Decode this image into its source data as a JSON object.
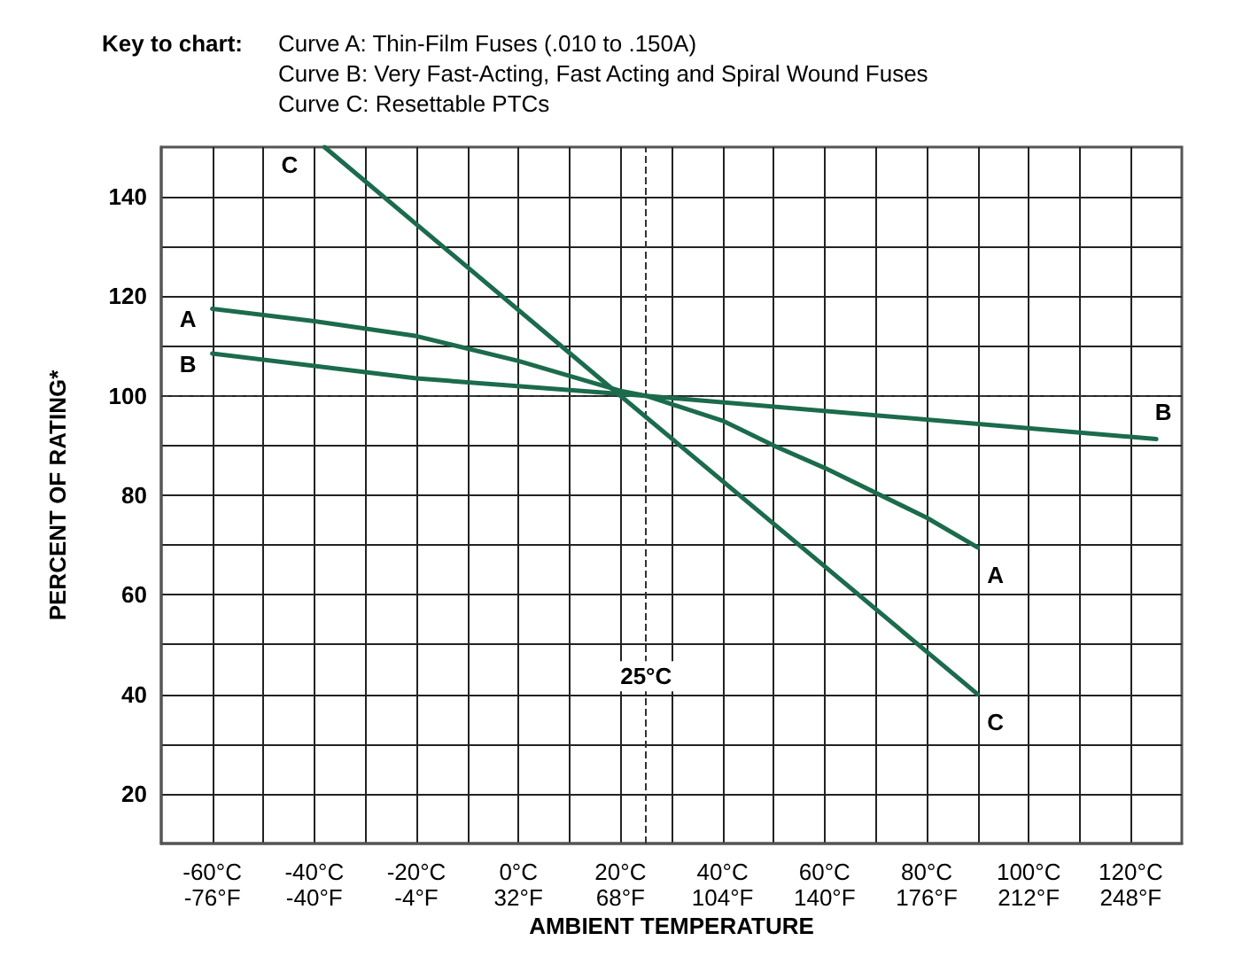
{
  "chart_data": {
    "type": "line",
    "title": "Key to chart:",
    "annotations": [
      "Curve A: Thin-Film Fuses (.010 to .150A)",
      "Curve B: Very Fast-Acting, Fast Acting and Spiral Wound Fuses",
      "Curve C: Resettable PTCs"
    ],
    "xlabel": "AMBIENT TEMPERATURE",
    "ylabel": "PERCENT OF RATING*",
    "series": [
      {
        "name": "A",
        "color": "#1b6b4c",
        "x": [
          -60,
          -40,
          -20,
          0,
          20,
          25,
          40,
          50,
          60,
          80,
          90
        ],
        "values": [
          117.5,
          115,
          112,
          107,
          101,
          100,
          95,
          90,
          85.5,
          75.5,
          69.5
        ]
      },
      {
        "name": "B",
        "color": "#1b6b4c",
        "x": [
          -60,
          -20,
          25,
          125
        ],
        "values": [
          108.5,
          103.5,
          100,
          91.3
        ]
      },
      {
        "name": "C",
        "color": "#1b6b4c",
        "x": [
          -38,
          20,
          90
        ],
        "values": [
          150,
          100,
          40
        ]
      }
    ],
    "xlim": [
      -70,
      130
    ],
    "xticks": [
      {
        "value": -60,
        "label": "-60°C"
      },
      {
        "value": -50,
        "label": null
      },
      {
        "value": -40,
        "label": "-40°C"
      },
      {
        "value": -30,
        "label": null
      },
      {
        "value": -20,
        "label": "-20°C"
      },
      {
        "value": -10,
        "label": null
      },
      {
        "value": 0,
        "label": "0°C"
      },
      {
        "value": 10,
        "label": null
      },
      {
        "value": 20,
        "label": "20°C"
      },
      {
        "value": 30,
        "label": null
      },
      {
        "value": 40,
        "label": "40°C"
      },
      {
        "value": 50,
        "label": null
      },
      {
        "value": 60,
        "label": "60°C"
      },
      {
        "value": 70,
        "label": null
      },
      {
        "value": 80,
        "label": "80°C"
      },
      {
        "value": 90,
        "label": null
      },
      {
        "value": 100,
        "label": "100°C"
      },
      {
        "value": 110,
        "label": null
      },
      {
        "value": 120,
        "label": "120°C"
      }
    ],
    "x2lim": [
      -94,
      266
    ],
    "x2ticks": [
      {
        "value": -76,
        "label": "-76°F"
      },
      {
        "value": -40,
        "label": "-40°F"
      },
      {
        "value": -4,
        "label": "-4°F"
      },
      {
        "value": 32,
        "label": "32°F"
      },
      {
        "value": 68,
        "label": "68°F"
      },
      {
        "value": 104,
        "label": "104°F"
      },
      {
        "value": 140,
        "label": "140°F"
      },
      {
        "value": 176,
        "label": "176°F"
      },
      {
        "value": 212,
        "label": "212°F"
      },
      {
        "value": 248,
        "label": "248°F"
      }
    ],
    "ylim": [
      10,
      150
    ],
    "yticks": [
      20,
      {
        "value": 30,
        "label": null
      },
      40,
      {
        "value": 50,
        "label": null
      },
      60,
      {
        "value": 70,
        "label": null
      },
      80,
      {
        "value": 90,
        "label": null
      },
      100,
      {
        "value": 110,
        "label": null
      },
      120,
      {
        "value": 130,
        "label": null
      },
      140
    ],
    "ref_lines": [
      {
        "axis": "y",
        "value": 100,
        "label": null,
        "line_style": "dashed",
        "color": "#333333"
      },
      {
        "axis": "x",
        "value": 25,
        "label": "25°C",
        "line_style": "dashed",
        "color": "#333333"
      }
    ],
    "grid": true,
    "legend": false,
    "marker": "none",
    "line_style": "solid"
  }
}
